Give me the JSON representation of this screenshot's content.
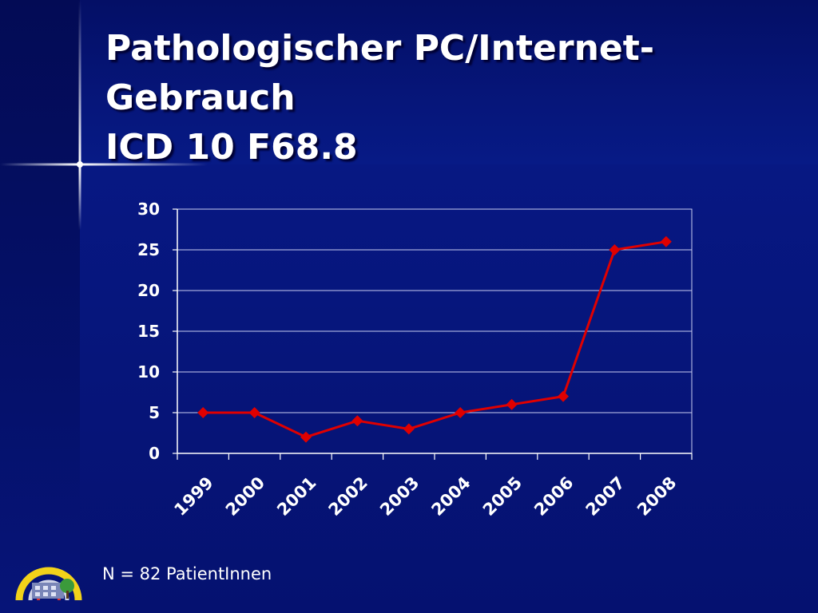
{
  "title": {
    "line1": "Pathologischer PC/Internet-",
    "line2": "Gebrauch",
    "line3": "ICD 10 F68.8"
  },
  "footnote": "N = 82 PatientInnen",
  "colors": {
    "series": "#e00000",
    "grid": "#c8ccf0",
    "text": "#ffffff"
  },
  "chart_data": {
    "type": "line",
    "categories": [
      "1999",
      "2000",
      "2001",
      "2002",
      "2003",
      "2004",
      "2005",
      "2006",
      "2007",
      "2008"
    ],
    "series": [
      {
        "values": [
          5,
          5,
          2,
          4,
          3,
          5,
          6,
          7,
          25,
          26
        ]
      }
    ],
    "ylim": [
      0,
      30
    ],
    "yticks": [
      0,
      5,
      10,
      15,
      20,
      25,
      30
    ],
    "grid": true,
    "legend": "none",
    "marker": "diamond"
  }
}
